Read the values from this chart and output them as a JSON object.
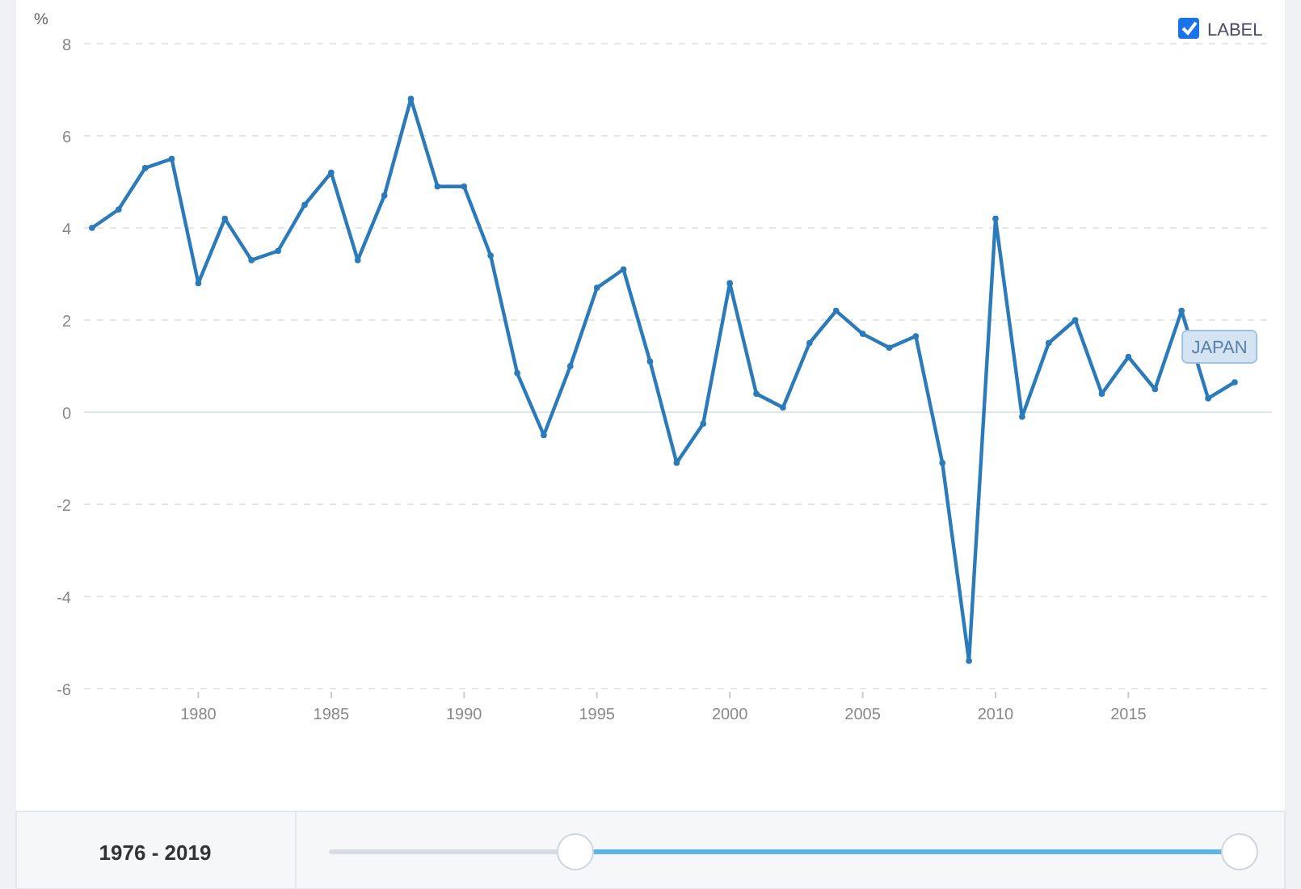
{
  "chart_data": {
    "type": "line",
    "ylabel": "%",
    "x": [
      1976,
      1977,
      1978,
      1979,
      1980,
      1981,
      1982,
      1983,
      1984,
      1985,
      1986,
      1987,
      1988,
      1989,
      1990,
      1991,
      1992,
      1993,
      1994,
      1995,
      1996,
      1997,
      1998,
      1999,
      2000,
      2001,
      2002,
      2003,
      2004,
      2005,
      2006,
      2007,
      2008,
      2009,
      2010,
      2011,
      2012,
      2013,
      2014,
      2015,
      2016,
      2017,
      2018,
      2019
    ],
    "series": [
      {
        "name": "JAPAN",
        "color": "#2b7bba",
        "values": [
          4.0,
          4.4,
          5.3,
          5.5,
          2.8,
          4.2,
          3.3,
          3.5,
          4.5,
          5.2,
          3.3,
          4.7,
          6.8,
          4.9,
          4.9,
          3.4,
          0.85,
          -0.5,
          1.0,
          2.7,
          3.1,
          1.1,
          -1.1,
          -0.25,
          2.8,
          0.4,
          0.1,
          1.5,
          2.2,
          1.7,
          1.4,
          1.65,
          -1.1,
          -5.4,
          4.2,
          -0.1,
          1.5,
          2.0,
          0.4,
          1.2,
          0.5,
          2.2,
          0.3,
          0.65
        ]
      }
    ],
    "xlim": [
      1975.7,
      2020.4
    ],
    "xticks": [
      1980,
      1985,
      1990,
      1995,
      2000,
      2005,
      2010,
      2015
    ],
    "ylim": [
      -6,
      8
    ],
    "yticks": [
      -6,
      -4,
      -2,
      0,
      2,
      4,
      6,
      8
    ],
    "grid": "y",
    "marker": "circle",
    "line_style": "solid",
    "annotations": [
      "LABEL",
      "1976 - 2019"
    ]
  }
}
